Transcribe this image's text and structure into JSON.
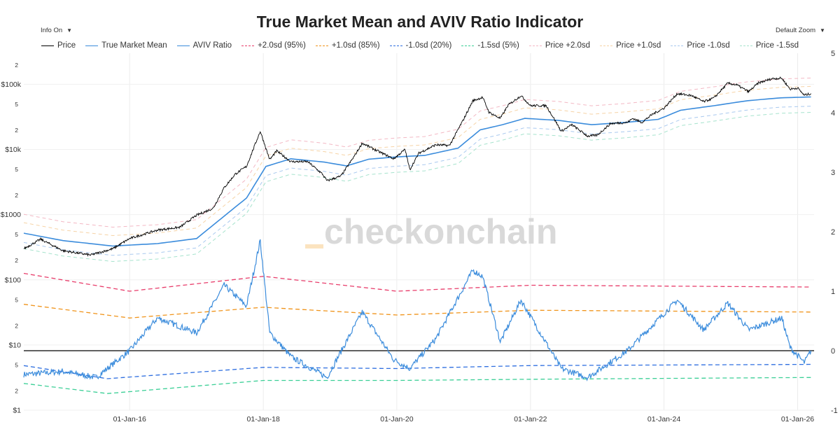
{
  "header": {
    "title": "True Market Mean and AVIV Ratio Indicator",
    "info_toggle": "Info On",
    "zoom_select": "Default Zoom",
    "watermark": "checkonchain"
  },
  "colors": {
    "price": "#000000",
    "true_market_mean": "#3b8cdc",
    "aviv_ratio": "#3b8cdc",
    "plus2sd": "#e83d6b",
    "plus1sd": "#f0941b",
    "minus1sd": "#2f6fe0",
    "minus15sd": "#3bcf96",
    "price_plus2sd": "#f3b8c4",
    "price_plus1sd": "#f6d3a6",
    "price_minus1sd": "#a9c9ef",
    "price_minus15sd": "#a6e3cd",
    "zero_line": "#000000"
  },
  "chart_data": {
    "type": "line",
    "title": "True Market Mean and AVIV Ratio Indicator",
    "legend": [
      {
        "label": "Price",
        "style": "solid",
        "color": "#000000"
      },
      {
        "label": "True Market Mean",
        "style": "solid",
        "color": "#3b8cdc"
      },
      {
        "label": "AVIV Ratio",
        "style": "solid",
        "color": "#3b8cdc"
      },
      {
        "label": "+2.0sd (95%)",
        "style": "dash",
        "color": "#e83d6b"
      },
      {
        "label": "+1.0sd (85%)",
        "style": "dash",
        "color": "#f0941b"
      },
      {
        "label": "-1.0sd (20%)",
        "style": "dash",
        "color": "#2f6fe0"
      },
      {
        "label": "-1.5sd (5%)",
        "style": "dash",
        "color": "#3bcf96"
      },
      {
        "label": "Price +2.0sd",
        "style": "dash",
        "color": "#f3b8c4"
      },
      {
        "label": "Price +1.0sd",
        "style": "dash",
        "color": "#f6d3a6"
      },
      {
        "label": "Price -1.0sd",
        "style": "dash",
        "color": "#a9c9ef"
      },
      {
        "label": "Price -1.5sd",
        "style": "dash",
        "color": "#a6e3cd"
      }
    ],
    "legend_position": "top",
    "x_axis": {
      "type": "date",
      "range": [
        "2014-06-01",
        "2026-04-01"
      ],
      "tick_labels": [
        "01-Jan-16",
        "01-Jan-18",
        "01-Jan-20",
        "01-Jan-22",
        "01-Jan-24",
        "01-Jan-26"
      ]
    },
    "y_left": {
      "scale": "log",
      "range": [
        1,
        300000
      ],
      "tick_labels": [
        "$1",
        "2",
        "5",
        "$10",
        "2",
        "5",
        "$100",
        "2",
        "5",
        "$1000",
        "2",
        "5",
        "$10k",
        "2",
        "5",
        "$100k",
        "2"
      ]
    },
    "y_right": {
      "scale": "linear",
      "range": [
        -1,
        5
      ],
      "tick_labels": [
        "-1",
        "0",
        "1",
        "2",
        "3",
        "4",
        "5"
      ]
    },
    "grid": true,
    "price_series": [
      [
        "2014-06-01",
        300
      ],
      [
        "2014-09-01",
        420
      ],
      [
        "2015-01-01",
        280
      ],
      [
        "2015-06-01",
        240
      ],
      [
        "2015-10-01",
        300
      ],
      [
        "2016-01-01",
        430
      ],
      [
        "2016-06-01",
        580
      ],
      [
        "2016-10-01",
        640
      ],
      [
        "2017-01-01",
        980
      ],
      [
        "2017-04-01",
        1250
      ],
      [
        "2017-06-01",
        2600
      ],
      [
        "2017-08-01",
        4200
      ],
      [
        "2017-10-01",
        5500
      ],
      [
        "2017-12-15",
        19000
      ],
      [
        "2018-02-05",
        7000
      ],
      [
        "2018-03-15",
        9500
      ],
      [
        "2018-06-01",
        6500
      ],
      [
        "2018-09-01",
        6500
      ],
      [
        "2018-11-20",
        4200
      ],
      [
        "2018-12-15",
        3300
      ],
      [
        "2019-03-01",
        3900
      ],
      [
        "2019-05-15",
        8000
      ],
      [
        "2019-06-26",
        12500
      ],
      [
        "2019-09-01",
        10000
      ],
      [
        "2019-12-15",
        7200
      ],
      [
        "2020-02-15",
        10000
      ],
      [
        "2020-03-12",
        4900
      ],
      [
        "2020-05-01",
        8800
      ],
      [
        "2020-08-01",
        11800
      ],
      [
        "2020-10-15",
        11500
      ],
      [
        "2020-12-31",
        29000
      ],
      [
        "2021-02-20",
        56000
      ],
      [
        "2021-04-14",
        63000
      ],
      [
        "2021-05-20",
        37000
      ],
      [
        "2021-07-20",
        30000
      ],
      [
        "2021-09-01",
        48000
      ],
      [
        "2021-11-10",
        67000
      ],
      [
        "2022-01-01",
        47000
      ],
      [
        "2022-03-28",
        47000
      ],
      [
        "2022-05-12",
        29000
      ],
      [
        "2022-06-18",
        19000
      ],
      [
        "2022-08-15",
        24000
      ],
      [
        "2022-11-10",
        16000
      ],
      [
        "2023-01-01",
        16600
      ],
      [
        "2023-03-15",
        25000
      ],
      [
        "2023-06-15",
        26000
      ],
      [
        "2023-07-15",
        30000
      ],
      [
        "2023-09-01",
        26000
      ],
      [
        "2023-11-01",
        35000
      ],
      [
        "2024-01-01",
        43000
      ],
      [
        "2024-03-14",
        72000
      ],
      [
        "2024-06-01",
        67000
      ],
      [
        "2024-08-05",
        54000
      ],
      [
        "2024-10-01",
        62000
      ],
      [
        "2024-12-15",
        104000
      ],
      [
        "2025-02-01",
        98000
      ],
      [
        "2025-04-08",
        77000
      ],
      [
        "2025-06-01",
        105000
      ],
      [
        "2025-08-14",
        122000
      ],
      [
        "2025-10-06",
        124000
      ],
      [
        "2025-11-21",
        84000
      ],
      [
        "2026-01-01",
        88000
      ],
      [
        "2026-02-06",
        68000
      ],
      [
        "2026-03-15",
        72000
      ]
    ],
    "true_market_mean_series": [
      [
        "2014-06-01",
        520
      ],
      [
        "2015-01-01",
        400
      ],
      [
        "2015-10-01",
        330
      ],
      [
        "2016-06-01",
        360
      ],
      [
        "2017-01-01",
        430
      ],
      [
        "2017-06-01",
        950
      ],
      [
        "2017-10-01",
        1800
      ],
      [
        "2018-01-15",
        5500
      ],
      [
        "2018-06-01",
        7200
      ],
      [
        "2018-12-01",
        6400
      ],
      [
        "2019-04-01",
        5600
      ],
      [
        "2019-08-01",
        7100
      ],
      [
        "2020-01-01",
        7700
      ],
      [
        "2020-06-01",
        8100
      ],
      [
        "2020-12-01",
        10500
      ],
      [
        "2021-04-01",
        20000
      ],
      [
        "2021-08-01",
        24000
      ],
      [
        "2021-12-01",
        30000
      ],
      [
        "2022-06-01",
        28000
      ],
      [
        "2022-12-01",
        24000
      ],
      [
        "2023-06-01",
        26000
      ],
      [
        "2023-12-01",
        29000
      ],
      [
        "2024-04-01",
        40000
      ],
      [
        "2024-10-01",
        47000
      ],
      [
        "2025-04-01",
        56000
      ],
      [
        "2025-10-01",
        62000
      ],
      [
        "2026-03-15",
        64000
      ]
    ],
    "aviv_ratio_series": [
      [
        "2014-06-01",
        -0.4
      ],
      [
        "2015-01-01",
        -0.35
      ],
      [
        "2015-07-01",
        -0.45
      ],
      [
        "2016-01-01",
        0.0
      ],
      [
        "2016-06-01",
        0.55
      ],
      [
        "2017-01-01",
        0.3
      ],
      [
        "2017-06-01",
        1.1
      ],
      [
        "2017-10-01",
        0.75
      ],
      [
        "2017-12-15",
        1.85
      ],
      [
        "2018-02-05",
        0.3
      ],
      [
        "2018-06-01",
        -0.1
      ],
      [
        "2018-12-15",
        -0.45
      ],
      [
        "2019-06-26",
        0.65
      ],
      [
        "2019-12-15",
        -0.15
      ],
      [
        "2020-03-12",
        -0.3
      ],
      [
        "2020-08-01",
        0.2
      ],
      [
        "2021-02-20",
        1.35
      ],
      [
        "2021-04-14",
        1.25
      ],
      [
        "2021-07-20",
        0.15
      ],
      [
        "2021-11-10",
        0.85
      ],
      [
        "2022-06-18",
        -0.3
      ],
      [
        "2022-11-10",
        -0.45
      ],
      [
        "2023-06-15",
        0.0
      ],
      [
        "2024-03-14",
        0.85
      ],
      [
        "2024-08-05",
        0.35
      ],
      [
        "2024-12-15",
        0.8
      ],
      [
        "2025-04-08",
        0.35
      ],
      [
        "2025-10-06",
        0.55
      ],
      [
        "2025-11-21",
        0.05
      ],
      [
        "2026-02-06",
        -0.2
      ],
      [
        "2026-03-15",
        0.0
      ]
    ],
    "aviv_bands": {
      "plus2sd": [
        [
          "2014-06-01",
          1.3
        ],
        [
          "2016-01-01",
          1.0
        ],
        [
          "2018-01-01",
          1.25
        ],
        [
          "2020-01-01",
          1.0
        ],
        [
          "2022-01-01",
          1.1
        ],
        [
          "2026-03-15",
          1.07
        ]
      ],
      "plus1sd": [
        [
          "2014-06-01",
          0.78
        ],
        [
          "2016-01-01",
          0.55
        ],
        [
          "2018-01-01",
          0.73
        ],
        [
          "2020-01-01",
          0.6
        ],
        [
          "2022-01-01",
          0.68
        ],
        [
          "2026-03-15",
          0.65
        ]
      ],
      "minus1sd": [
        [
          "2014-06-01",
          -0.25
        ],
        [
          "2015-09-01",
          -0.47
        ],
        [
          "2018-01-01",
          -0.28
        ],
        [
          "2020-01-01",
          -0.3
        ],
        [
          "2022-01-01",
          -0.25
        ],
        [
          "2026-03-15",
          -0.23
        ]
      ],
      "minus15sd": [
        [
          "2014-06-01",
          -0.55
        ],
        [
          "2015-09-01",
          -0.72
        ],
        [
          "2018-01-01",
          -0.5
        ],
        [
          "2020-01-01",
          -0.5
        ],
        [
          "2022-01-01",
          -0.48
        ],
        [
          "2026-03-15",
          -0.45
        ]
      ]
    },
    "zero_line": 0
  }
}
